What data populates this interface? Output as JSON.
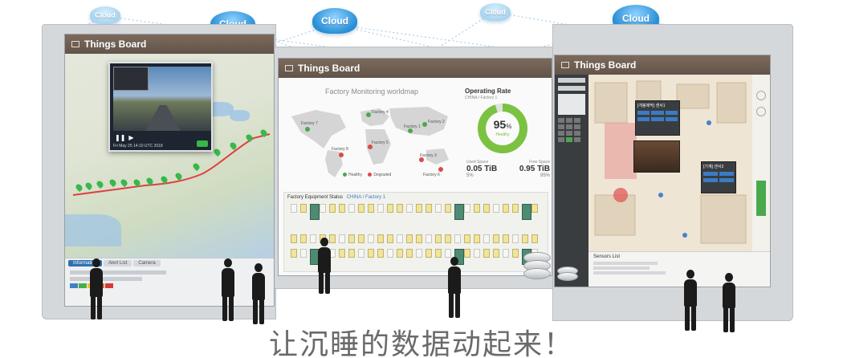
{
  "clouds": [
    {
      "label": "Cloud",
      "style": "faint"
    },
    {
      "label": "Cloud",
      "style": "solid"
    },
    {
      "label": "Cloud",
      "style": "solid"
    },
    {
      "label": "Cloud",
      "style": "faint"
    },
    {
      "label": "Cloud",
      "style": "solid"
    }
  ],
  "left_panel": {
    "title": "Things Board",
    "video_timestamp": "Fri May 25 14:10 UTC 2018",
    "info_tabs": [
      "Information",
      "Alert List",
      "Camera"
    ],
    "pin_color": "#38b84a"
  },
  "center_panel": {
    "title": "Things Board",
    "worldmap_title": "Factory Monitoring worldmap",
    "factories": [
      {
        "label": "Factory 1",
        "status": "healthy"
      },
      {
        "label": "Factory 2",
        "status": "healthy"
      },
      {
        "label": "Factory 3",
        "status": "degraded"
      },
      {
        "label": "Factory 4",
        "status": "healthy"
      },
      {
        "label": "Factory 5",
        "status": "degraded"
      },
      {
        "label": "Factory 6",
        "status": "degraded"
      },
      {
        "label": "Factory 7",
        "status": "healthy"
      },
      {
        "label": "Factory 8",
        "status": "degraded"
      }
    ],
    "map_legend": {
      "healthy": "Healthy",
      "degraded": "Degraded"
    },
    "operating_rate": {
      "title": "Operating Rate",
      "subtitle": "CHINA / Factory 1",
      "percent": "95",
      "unit": "%",
      "status": "Healthy",
      "value": 0.95
    },
    "space": {
      "used_label": "Used Space",
      "used_value": "0.05 TiB",
      "used_pct": "5%",
      "free_label": "Free Space",
      "free_value": "0.95 TiB",
      "free_pct": "95%"
    },
    "equipment_title": "Factory Equipment Status",
    "equipment_subtitle": "CHINA / Factory 1",
    "colors": {
      "healthy": "#4aa84f",
      "degraded": "#d94a4a",
      "seat": "#f0e59a",
      "block": "#4d8b72"
    }
  },
  "right_panel": {
    "title": "Things Board",
    "popup1_title": "[개봉제막] 센서1",
    "popup2_title": "[기계] 센서2",
    "bottom_list_title": "Sensors List"
  },
  "slogan": "让沉睡的数据动起来！"
}
